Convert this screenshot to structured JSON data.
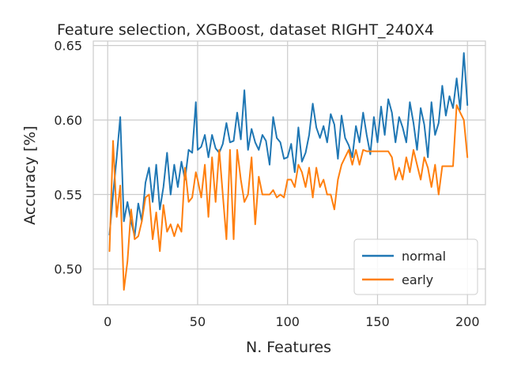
{
  "chart_data": {
    "type": "line",
    "title": "Feature selection, XGBoost, dataset RIGHT_240X4",
    "xlabel": "N. Features",
    "ylabel": "Accuracy [%]",
    "xlim": [
      -8,
      210
    ],
    "ylim": [
      0.476,
      0.653
    ],
    "xticks": [
      0,
      50,
      100,
      150,
      200
    ],
    "xtick_labels": [
      "0",
      "50",
      "100",
      "150",
      "200"
    ],
    "yticks": [
      0.5,
      0.55,
      0.6,
      0.65
    ],
    "ytick_labels": [
      "0.50",
      "0.55",
      "0.60",
      "0.65"
    ],
    "grid": true,
    "legend_position": "lower-right",
    "series": [
      {
        "name": "normal",
        "color": "#1f77b4",
        "x": [
          1,
          3,
          5,
          7,
          9,
          11,
          13,
          15,
          17,
          19,
          21,
          23,
          25,
          27,
          29,
          31,
          33,
          35,
          37,
          39,
          41,
          43,
          45,
          47,
          49,
          50,
          52,
          54,
          56,
          58,
          60,
          62,
          64,
          66,
          68,
          70,
          72,
          74,
          76,
          78,
          80,
          82,
          84,
          86,
          88,
          90,
          92,
          94,
          96,
          98,
          100,
          102,
          104,
          106,
          108,
          110,
          112,
          114,
          116,
          118,
          120,
          122,
          124,
          126,
          128,
          130,
          132,
          134,
          136,
          138,
          140,
          142,
          144,
          146,
          148,
          150,
          152,
          154,
          156,
          158,
          160,
          162,
          164,
          166,
          168,
          170,
          172,
          174,
          176,
          178,
          180,
          182,
          184,
          186,
          188,
          190,
          192,
          194,
          196,
          198,
          200
        ],
        "values": [
          0.523,
          0.55,
          0.575,
          0.602,
          0.532,
          0.545,
          0.532,
          0.522,
          0.544,
          0.532,
          0.558,
          0.568,
          0.545,
          0.57,
          0.54,
          0.555,
          0.578,
          0.55,
          0.57,
          0.555,
          0.572,
          0.56,
          0.58,
          0.578,
          0.612,
          0.58,
          0.582,
          0.59,
          0.575,
          0.59,
          0.581,
          0.578,
          0.584,
          0.598,
          0.585,
          0.586,
          0.605,
          0.587,
          0.62,
          0.58,
          0.594,
          0.585,
          0.58,
          0.59,
          0.586,
          0.57,
          0.602,
          0.588,
          0.585,
          0.574,
          0.575,
          0.584,
          0.565,
          0.595,
          0.572,
          0.578,
          0.59,
          0.611,
          0.595,
          0.588,
          0.596,
          0.585,
          0.604,
          0.597,
          0.574,
          0.603,
          0.588,
          0.583,
          0.575,
          0.596,
          0.585,
          0.605,
          0.59,
          0.577,
          0.602,
          0.585,
          0.609,
          0.59,
          0.614,
          0.605,
          0.585,
          0.602,
          0.595,
          0.585,
          0.612,
          0.598,
          0.58,
          0.608,
          0.597,
          0.575,
          0.612,
          0.59,
          0.598,
          0.623,
          0.603,
          0.616,
          0.608,
          0.628,
          0.607,
          0.645,
          0.61
        ]
      },
      {
        "name": "early",
        "color": "#ff7f0e",
        "x": [
          1,
          3,
          5,
          7,
          9,
          11,
          13,
          15,
          17,
          19,
          21,
          23,
          25,
          27,
          29,
          31,
          33,
          35,
          37,
          39,
          41,
          43,
          45,
          47,
          49,
          50,
          52,
          54,
          56,
          58,
          60,
          62,
          64,
          66,
          68,
          70,
          72,
          74,
          76,
          78,
          80,
          82,
          84,
          86,
          88,
          90,
          92,
          94,
          96,
          98,
          100,
          102,
          104,
          106,
          108,
          110,
          112,
          114,
          116,
          118,
          120,
          122,
          124,
          126,
          128,
          130,
          132,
          134,
          136,
          138,
          140,
          142,
          144,
          146,
          148,
          150,
          152,
          154,
          156,
          158,
          160,
          162,
          164,
          166,
          168,
          170,
          172,
          174,
          176,
          178,
          180,
          182,
          184,
          186,
          188,
          190,
          192,
          194,
          196,
          198,
          200
        ],
        "values": [
          0.512,
          0.586,
          0.535,
          0.556,
          0.486,
          0.505,
          0.54,
          0.52,
          0.522,
          0.532,
          0.548,
          0.55,
          0.52,
          0.538,
          0.512,
          0.543,
          0.525,
          0.53,
          0.522,
          0.53,
          0.525,
          0.568,
          0.545,
          0.548,
          0.565,
          0.56,
          0.548,
          0.57,
          0.535,
          0.575,
          0.545,
          0.58,
          0.55,
          0.52,
          0.58,
          0.52,
          0.58,
          0.56,
          0.545,
          0.55,
          0.575,
          0.53,
          0.562,
          0.55,
          0.55,
          0.55,
          0.553,
          0.548,
          0.55,
          0.548,
          0.56,
          0.56,
          0.555,
          0.57,
          0.565,
          0.555,
          0.568,
          0.548,
          0.568,
          0.555,
          0.56,
          0.55,
          0.55,
          0.54,
          0.56,
          0.57,
          0.575,
          0.58,
          0.57,
          0.58,
          0.57,
          0.58,
          0.579,
          0.579,
          0.579,
          0.579,
          0.579,
          0.579,
          0.579,
          0.575,
          0.56,
          0.568,
          0.56,
          0.575,
          0.565,
          0.58,
          0.57,
          0.56,
          0.575,
          0.568,
          0.555,
          0.57,
          0.55,
          0.569,
          0.569,
          0.569,
          0.569,
          0.61,
          0.605,
          0.6,
          0.575
        ]
      }
    ]
  }
}
